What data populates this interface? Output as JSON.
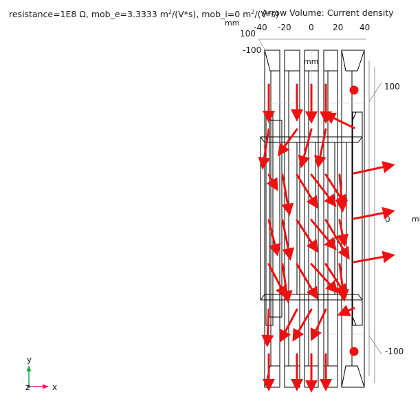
{
  "header": {
    "resistance_label": "resistance=1E8 Ω, mob_e=3.3333 m",
    "exp_2a": "2",
    "mob_e_unit_tail": "/(V*s), mob_i=0 m",
    "exp_2b": "2",
    "mob_i_unit_tail": "/(V*s)",
    "plot_title": "Arrow Volume: Current density"
  },
  "axes": {
    "x_unit": "mm",
    "top_unit": "mm",
    "right_unit": "mm",
    "x_ticks": [
      "-40",
      "-20",
      "0",
      "20",
      "40"
    ],
    "x_ticks_lower": [
      "100",
      "-100"
    ],
    "right_ticks": [
      "100",
      "0",
      "-100"
    ]
  },
  "triad": {
    "x_label": "x",
    "y_label": "y",
    "z_label": "z"
  },
  "colors": {
    "arrow": "#ee1111",
    "wire": "#000000",
    "triad_x": "#e0206a",
    "triad_y": "#22aa44"
  }
}
